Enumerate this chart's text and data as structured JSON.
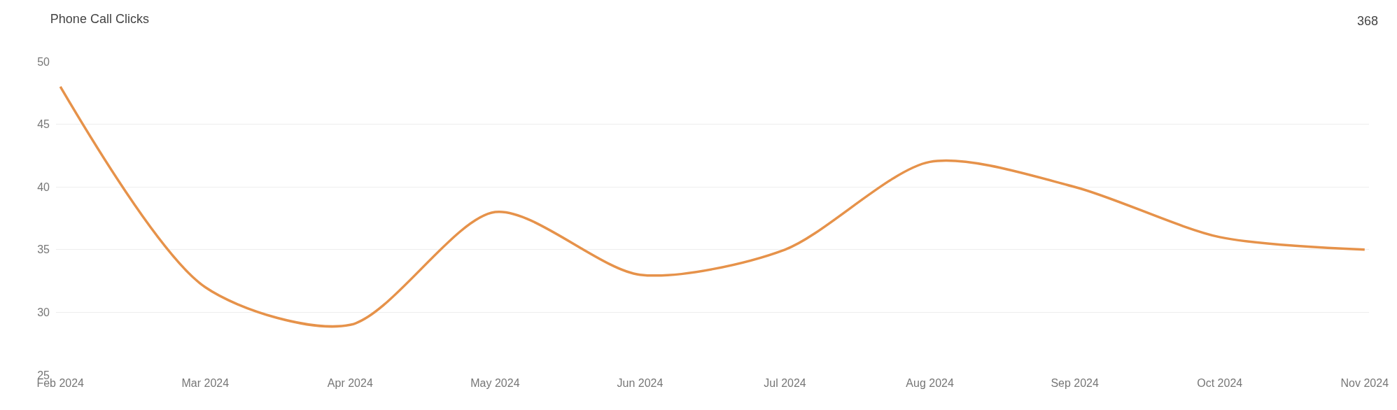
{
  "chart_data": {
    "type": "line",
    "title": "Phone Call Clicks",
    "annotations": [
      "368"
    ],
    "categories": [
      "Feb 2024",
      "Mar 2024",
      "Apr 2024",
      "May 2024",
      "Jun 2024",
      "Jul 2024",
      "Aug 2024",
      "Sep 2024",
      "Oct 2024",
      "Nov 2024"
    ],
    "series": [
      {
        "color": "#e6924a",
        "values": [
          48,
          32,
          29,
          38,
          33,
          35,
          42,
          40,
          36,
          35
        ]
      }
    ],
    "ylim": [
      25,
      50
    ],
    "yticks": [
      25,
      30,
      35,
      40,
      45,
      50
    ],
    "grid": "y",
    "marker": "none",
    "line_style": "solid"
  }
}
